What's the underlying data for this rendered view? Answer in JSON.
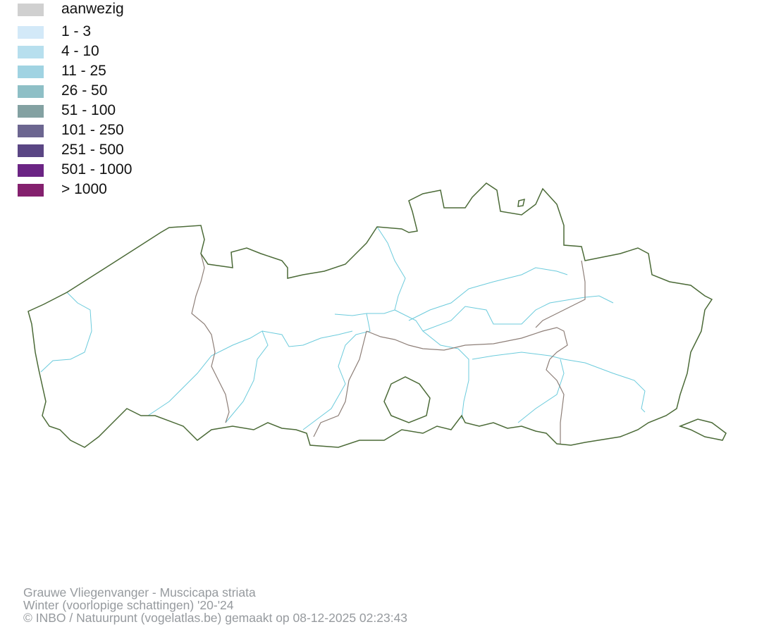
{
  "legend": {
    "items": [
      {
        "label": "aanwezig",
        "color": "#d0d0d0"
      },
      {
        "label": "1 - 3",
        "color": "#d3e9f8"
      },
      {
        "label": "4 - 10",
        "color": "#b7dfee"
      },
      {
        "label": "11 - 25",
        "color": "#a0d3e2"
      },
      {
        "label": "26 - 50",
        "color": "#8ebfc6"
      },
      {
        "label": "51 - 100",
        "color": "#83a1a2"
      },
      {
        "label": "101 - 250",
        "color": "#6c6690"
      },
      {
        "label": "251 - 500",
        "color": "#5a4684"
      },
      {
        "label": "501 - 1000",
        "color": "#6b2484"
      },
      {
        "label": "> 1000",
        "color": "#84206e"
      }
    ]
  },
  "map": {
    "border_color": "#4b6a37",
    "province_border_color": "#8e7f78",
    "river_color": "#6ccbdc"
  },
  "footer": {
    "species": "Grauwe Vliegenvanger - Muscicapa striata",
    "period": "Winter (voorlopige schattingen) '20-'24",
    "credit": "© INBO / Natuurpunt (vogelatlas.be) gemaakt op 08-12-2025 02:23:43"
  }
}
